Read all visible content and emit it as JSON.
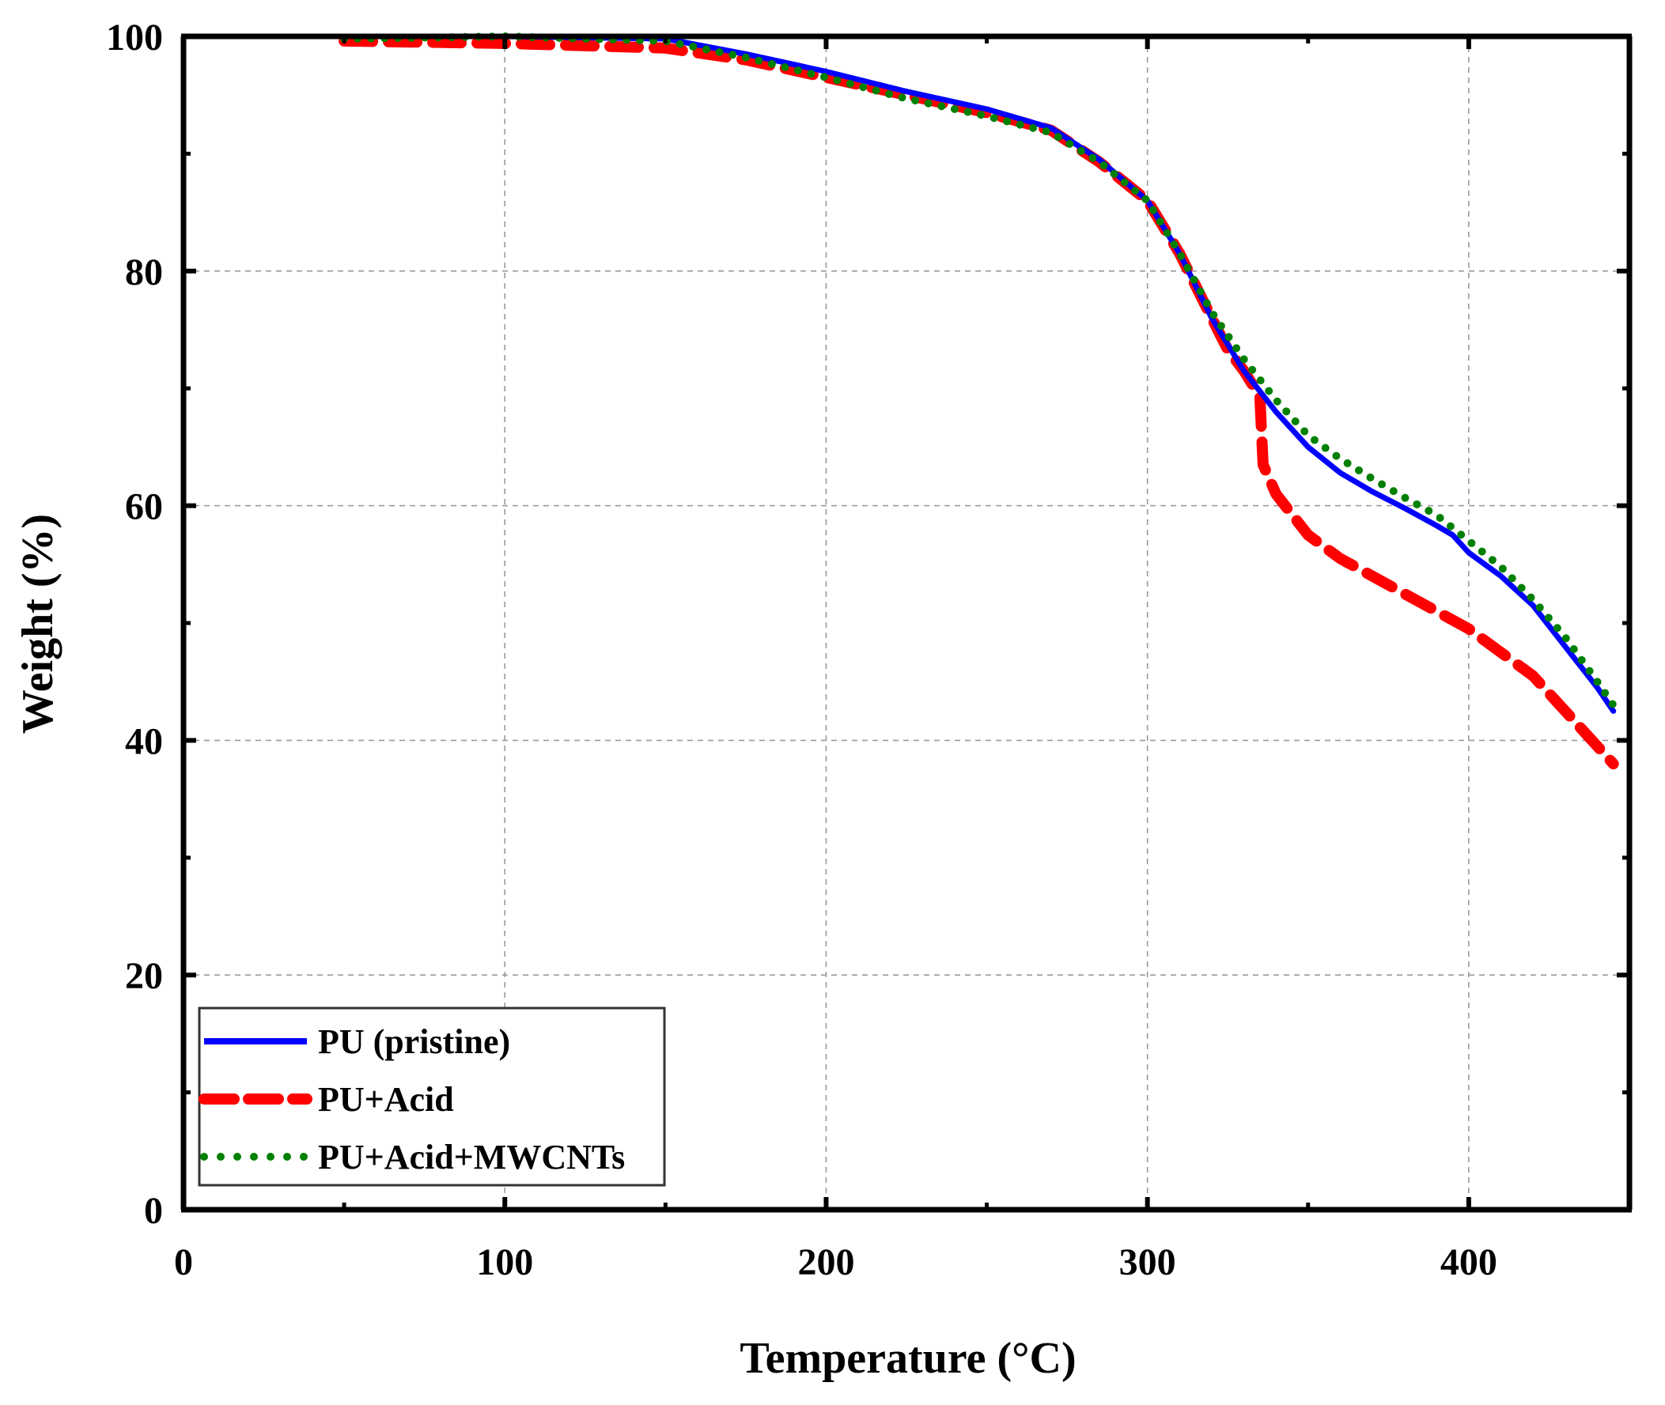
{
  "chart_data": {
    "type": "line",
    "title": "",
    "xlabel": "Temperature (°C)",
    "ylabel": "Weight (%)",
    "xlim": [
      0,
      450
    ],
    "ylim": [
      0,
      100
    ],
    "xticks": [
      0,
      100,
      200,
      300,
      400
    ],
    "yticks": [
      0,
      20,
      40,
      60,
      80,
      100
    ],
    "grid": true,
    "legend_position": "bottom-left",
    "series": [
      {
        "name": "PU (pristine)",
        "color": "#0000ff",
        "style": "solid",
        "x": [
          50,
          100,
          150,
          175,
          200,
          225,
          250,
          270,
          285,
          300,
          310,
          320,
          330,
          340,
          350,
          360,
          370,
          380,
          390,
          395,
          400,
          410,
          420,
          430,
          440,
          445
        ],
        "y": [
          100,
          100,
          99.8,
          98.5,
          97,
          95.3,
          93.8,
          92.2,
          89.5,
          86,
          81.5,
          76,
          71.5,
          68,
          65,
          62.8,
          61.2,
          59.8,
          58.3,
          57.5,
          56,
          54,
          51.5,
          48,
          44.5,
          42.5
        ]
      },
      {
        "name": "PU+Acid",
        "color": "#ff0000",
        "style": "dashed",
        "x": [
          50,
          100,
          150,
          175,
          200,
          225,
          250,
          270,
          285,
          300,
          310,
          320,
          325,
          330,
          335,
          336,
          340,
          350,
          360,
          370,
          380,
          390,
          400,
          410,
          420,
          430,
          440,
          445
        ],
        "y": [
          99.6,
          99.4,
          99,
          98,
          96.5,
          95,
          93.5,
          92,
          89.3,
          86,
          81.5,
          76,
          73.3,
          71.5,
          69.3,
          63.5,
          61,
          57.5,
          55.5,
          54,
          52.5,
          51,
          49.5,
          47.5,
          45.5,
          42.5,
          39.5,
          38
        ]
      },
      {
        "name": "PU+Acid+MWCNTs",
        "color": "#008000",
        "style": "dotted",
        "x": [
          50,
          100,
          150,
          175,
          200,
          225,
          250,
          270,
          285,
          300,
          310,
          320,
          330,
          340,
          350,
          360,
          370,
          380,
          390,
          400,
          410,
          420,
          430,
          440,
          445
        ],
        "y": [
          99.8,
          100,
          99.6,
          98.2,
          96.5,
          94.7,
          93.2,
          91.8,
          89.3,
          86,
          81.5,
          76.5,
          72.5,
          69,
          66,
          64,
          62.3,
          60.7,
          59.2,
          57,
          54.8,
          52,
          48.8,
          45,
          43
        ]
      }
    ]
  }
}
